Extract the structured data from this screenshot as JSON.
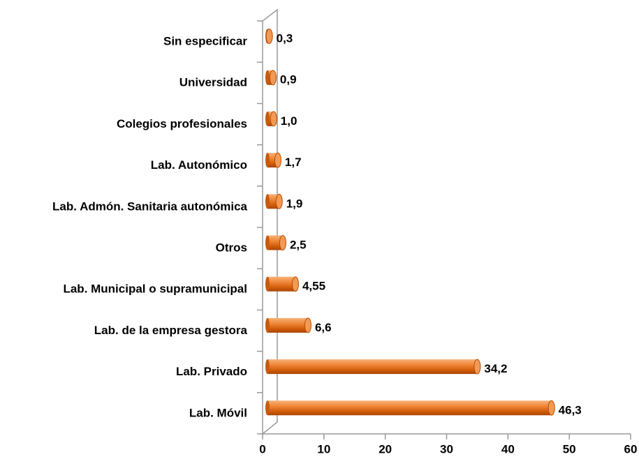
{
  "chart_data": {
    "type": "bar",
    "orientation": "horizontal",
    "categories": [
      "Sin especificar",
      "Universidad",
      "Colegios profesionales",
      "Lab. Autonómico",
      "Lab. Admón. Sanitaria autonómica",
      "Otros",
      "Lab. Municipal o supramunicipal",
      "Lab. de la empresa gestora",
      "Lab. Privado",
      "Lab. Móvil"
    ],
    "values": [
      0.3,
      0.9,
      1.0,
      1.7,
      1.9,
      2.5,
      4.55,
      6.6,
      34.2,
      46.3
    ],
    "value_labels": [
      "0,3",
      "0,9",
      "1,0",
      "1,7",
      "1,9",
      "2,5",
      "4,55",
      "6,6",
      "34,2",
      "46,3"
    ],
    "color": "#e36c0a",
    "xlim": [
      0,
      60
    ],
    "xticks": [
      0,
      10,
      20,
      30,
      40,
      50,
      60
    ]
  }
}
